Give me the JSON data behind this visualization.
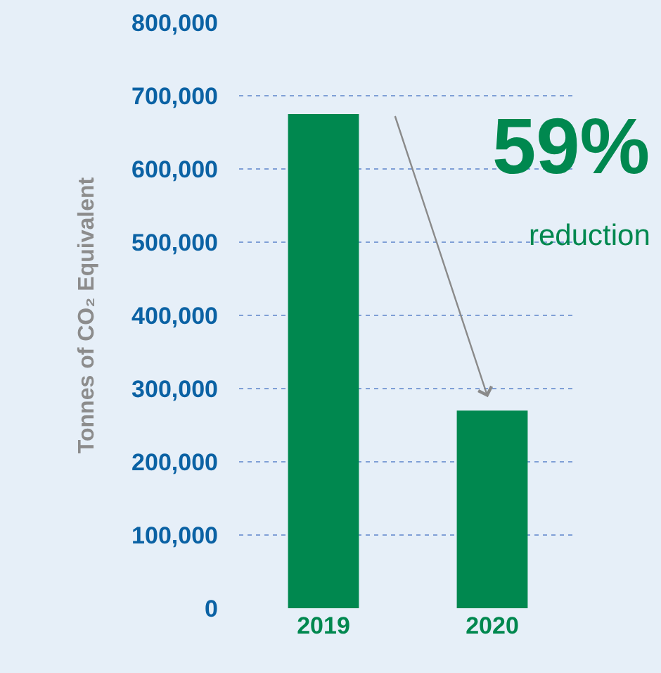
{
  "chart_data": {
    "type": "bar",
    "ylabel": "Tonnes of CO₂ Equivalent",
    "categories": [
      "2019",
      "2020"
    ],
    "values": [
      675000,
      270000
    ],
    "color": "#00884f",
    "ylim": [
      0,
      800000
    ],
    "yticks": [
      {
        "value": 0,
        "label": "0"
      },
      {
        "value": 100000,
        "label": "100,000"
      },
      {
        "value": 200000,
        "label": "200,000"
      },
      {
        "value": 300000,
        "label": "300,000"
      },
      {
        "value": 400000,
        "label": "400,000"
      },
      {
        "value": 500000,
        "label": "500,000"
      },
      {
        "value": 600000,
        "label": "600,000"
      },
      {
        "value": 700000,
        "label": "700,000"
      },
      {
        "value": 800000,
        "label": "800,000"
      }
    ],
    "grid": "y",
    "annotations": [
      "59%",
      "reduction"
    ]
  }
}
